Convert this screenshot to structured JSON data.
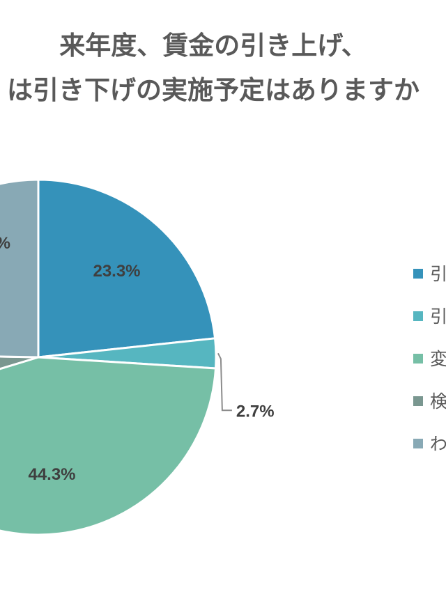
{
  "chart_data": {
    "type": "pie",
    "title": "来年度、賃金の引き上げ、\nは引き下げの実施予定はありますか",
    "slices": [
      {
        "label": "引",
        "value": 23.3,
        "value_label": "23.3%",
        "color": "#3592ba"
      },
      {
        "label": "引",
        "value": 2.7,
        "value_label": "2.7%",
        "color": "#56b6c0"
      },
      {
        "label": "変",
        "value": 44.3,
        "value_label": "44.3%",
        "color": "#76bfa6"
      },
      {
        "label": "検",
        "value": 5.0,
        "value_label": "",
        "color": "#7a9790"
      },
      {
        "label": "わ",
        "value": 24.7,
        "value_label": "%",
        "color": "#88a9b5"
      }
    ],
    "legend": {
      "position": "right"
    }
  }
}
